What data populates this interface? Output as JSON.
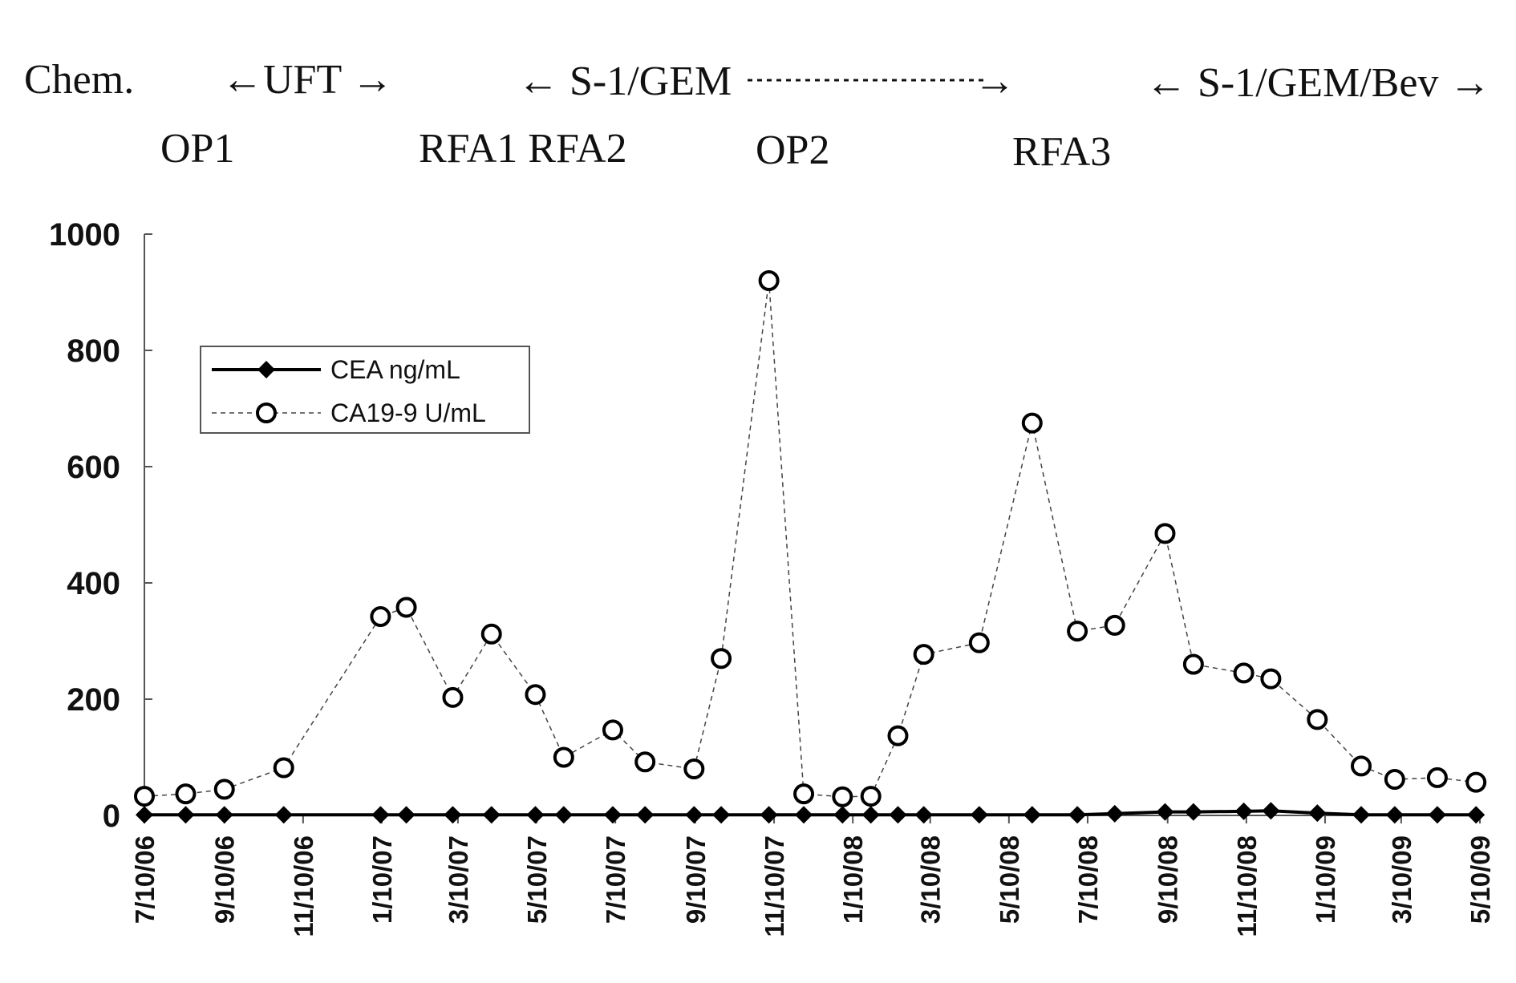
{
  "annotations": {
    "chem_label": "Chem.",
    "uft": "←UFT →",
    "s1gem": "← S-1/GEM",
    "s1gem_arrow": "→",
    "s1gembev": "← S-1/GEM/Bev →",
    "op1": "OP1",
    "rfa12": "RFA1 RFA2",
    "op2": "OP2",
    "rfa3": "RFA3"
  },
  "chart_data": {
    "type": "line",
    "title": "",
    "xlabel": "",
    "ylabel": "",
    "ylim": [
      0,
      1000
    ],
    "yticks": [
      "0",
      "200",
      "400",
      "600",
      "800",
      "1000"
    ],
    "xlim": [
      "2006-07-10",
      "2009-05-10"
    ],
    "xticks": [
      {
        "date": "2006-07-10",
        "label": "7/10/06"
      },
      {
        "date": "2006-09-10",
        "label": "9/10/06"
      },
      {
        "date": "2006-11-10",
        "label": "11/10/06"
      },
      {
        "date": "2007-01-10",
        "label": "1/10/07"
      },
      {
        "date": "2007-03-10",
        "label": "3/10/07"
      },
      {
        "date": "2007-05-10",
        "label": "5/10/07"
      },
      {
        "date": "2007-07-10",
        "label": "7/10/07"
      },
      {
        "date": "2007-09-10",
        "label": "9/10/07"
      },
      {
        "date": "2007-11-10",
        "label": "11/10/07"
      },
      {
        "date": "2008-01-10",
        "label": "1/10/08"
      },
      {
        "date": "2008-03-10",
        "label": "3/10/08"
      },
      {
        "date": "2008-05-10",
        "label": "5/10/08"
      },
      {
        "date": "2008-07-10",
        "label": "7/10/08"
      },
      {
        "date": "2008-09-10",
        "label": "9/10/08"
      },
      {
        "date": "2008-11-10",
        "label": "11/10/08"
      },
      {
        "date": "2009-01-10",
        "label": "1/10/09"
      },
      {
        "date": "2009-03-10",
        "label": "3/10/09"
      },
      {
        "date": "2009-05-10",
        "label": "5/10/09"
      }
    ],
    "grid": false,
    "legend_position": "upper-left",
    "series": [
      {
        "name": "CEA ng/mL",
        "color": "#000000",
        "style": "solid",
        "marker": "diamond",
        "points": [
          {
            "x": "2006-07-10",
            "y": 1
          },
          {
            "x": "2006-08-11",
            "y": 1
          },
          {
            "x": "2006-09-10",
            "y": 1
          },
          {
            "x": "2006-10-26",
            "y": 1
          },
          {
            "x": "2007-01-09",
            "y": 1
          },
          {
            "x": "2007-01-29",
            "y": 1
          },
          {
            "x": "2007-03-06",
            "y": 1
          },
          {
            "x": "2007-04-05",
            "y": 1
          },
          {
            "x": "2007-05-09",
            "y": 1
          },
          {
            "x": "2007-05-31",
            "y": 1
          },
          {
            "x": "2007-07-08",
            "y": 1
          },
          {
            "x": "2007-08-02",
            "y": 1
          },
          {
            "x": "2007-09-09",
            "y": 1
          },
          {
            "x": "2007-09-30",
            "y": 1
          },
          {
            "x": "2007-11-06",
            "y": 1
          },
          {
            "x": "2007-12-03",
            "y": 1
          },
          {
            "x": "2008-01-02",
            "y": 1
          },
          {
            "x": "2008-01-24",
            "y": 1
          },
          {
            "x": "2008-02-14",
            "y": 1
          },
          {
            "x": "2008-03-05",
            "y": 1
          },
          {
            "x": "2008-04-17",
            "y": 1
          },
          {
            "x": "2008-05-28",
            "y": 1
          },
          {
            "x": "2008-07-02",
            "y": 1
          },
          {
            "x": "2008-07-31",
            "y": 3
          },
          {
            "x": "2008-09-08",
            "y": 6
          },
          {
            "x": "2008-09-30",
            "y": 6
          },
          {
            "x": "2008-11-08",
            "y": 7
          },
          {
            "x": "2008-11-29",
            "y": 8
          },
          {
            "x": "2009-01-04",
            "y": 4
          },
          {
            "x": "2009-02-07",
            "y": 1
          },
          {
            "x": "2009-03-05",
            "y": 1
          },
          {
            "x": "2009-04-07",
            "y": 1
          },
          {
            "x": "2009-05-07",
            "y": 1
          }
        ]
      },
      {
        "name": "CA19-9 U/mL",
        "color": "#000000",
        "style": "dashed",
        "marker": "circle",
        "points": [
          {
            "x": "2006-07-10",
            "y": 33
          },
          {
            "x": "2006-08-11",
            "y": 37
          },
          {
            "x": "2006-09-10",
            "y": 45
          },
          {
            "x": "2006-10-26",
            "y": 82
          },
          {
            "x": "2007-01-09",
            "y": 342
          },
          {
            "x": "2007-01-29",
            "y": 358
          },
          {
            "x": "2007-03-06",
            "y": 203
          },
          {
            "x": "2007-04-05",
            "y": 312
          },
          {
            "x": "2007-05-09",
            "y": 208
          },
          {
            "x": "2007-05-31",
            "y": 100
          },
          {
            "x": "2007-07-08",
            "y": 147
          },
          {
            "x": "2007-08-02",
            "y": 92
          },
          {
            "x": "2007-09-09",
            "y": 80
          },
          {
            "x": "2007-09-30",
            "y": 270
          },
          {
            "x": "2007-11-06",
            "y": 920
          },
          {
            "x": "2007-12-03",
            "y": 37
          },
          {
            "x": "2008-01-02",
            "y": 32
          },
          {
            "x": "2008-01-24",
            "y": 33
          },
          {
            "x": "2008-02-14",
            "y": 137
          },
          {
            "x": "2008-03-05",
            "y": 277
          },
          {
            "x": "2008-04-17",
            "y": 297
          },
          {
            "x": "2008-05-28",
            "y": 675
          },
          {
            "x": "2008-07-02",
            "y": 317
          },
          {
            "x": "2008-07-31",
            "y": 327
          },
          {
            "x": "2008-09-08",
            "y": 485
          },
          {
            "x": "2008-09-30",
            "y": 260
          },
          {
            "x": "2008-11-08",
            "y": 245
          },
          {
            "x": "2008-11-29",
            "y": 235
          },
          {
            "x": "2009-01-04",
            "y": 165
          },
          {
            "x": "2009-02-07",
            "y": 85
          },
          {
            "x": "2009-03-05",
            "y": 62
          },
          {
            "x": "2009-04-07",
            "y": 65
          },
          {
            "x": "2009-05-07",
            "y": 57
          }
        ]
      }
    ]
  }
}
